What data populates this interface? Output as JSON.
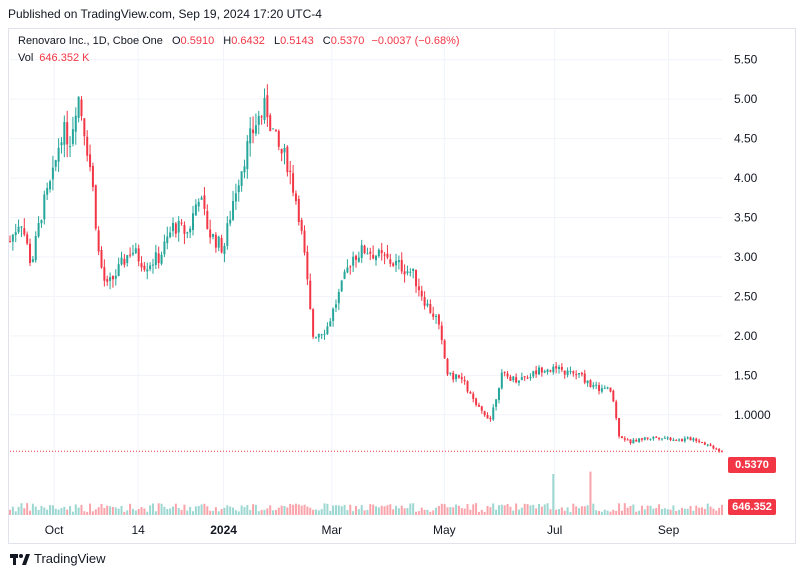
{
  "header": {
    "published": "Published on TradingView.com, Sep 19, 2024 17:20 UTC-4"
  },
  "legend": {
    "symbol": "Renovaro Inc., 1D, Cboe One",
    "o_label": "O",
    "o_value": "0.5910",
    "h_label": "H",
    "h_value": "0.6432",
    "l_label": "L",
    "l_value": "0.5143",
    "c_label": "C",
    "c_value": "0.5370",
    "change": "−0.0037 (−0.68%)",
    "vol_label": "Vol",
    "vol_value": "646.352 K"
  },
  "footer": {
    "brand": "TradingView",
    "logo_icon": "tradingview-logo-icon"
  },
  "colors": {
    "up": "#26a69a",
    "down": "#f23645",
    "grid": "#f0f3fa",
    "axis_text": "#131722"
  },
  "chart_data": {
    "type": "candlestick",
    "title": "Renovaro Inc., 1D, Cboe One",
    "y_ticks": [
      "5.50",
      "5.00",
      "4.50",
      "4.00",
      "3.50",
      "3.00",
      "2.50",
      "2.00",
      "1.50",
      "1.0000"
    ],
    "y_range": [
      0.3,
      5.75
    ],
    "x_ticks": [
      "Oct",
      "14",
      "2024",
      "Mar",
      "May",
      "Jul",
      "Sep"
    ],
    "last_price_label": "0.5370",
    "last_price": 0.537,
    "last_volume_label": "646.352 K",
    "grid": true,
    "price_path": [
      {
        "x": 0.0,
        "p": 3.2
      },
      {
        "x": 0.015,
        "p": 3.5
      },
      {
        "x": 0.03,
        "p": 2.9
      },
      {
        "x": 0.045,
        "p": 3.6
      },
      {
        "x": 0.06,
        "p": 4.0
      },
      {
        "x": 0.072,
        "p": 4.6
      },
      {
        "x": 0.085,
        "p": 4.5
      },
      {
        "x": 0.095,
        "p": 5.1
      },
      {
        "x": 0.105,
        "p": 4.6
      },
      {
        "x": 0.115,
        "p": 4.0
      },
      {
        "x": 0.125,
        "p": 3.0
      },
      {
        "x": 0.135,
        "p": 2.6
      },
      {
        "x": 0.15,
        "p": 2.8
      },
      {
        "x": 0.17,
        "p": 3.1
      },
      {
        "x": 0.19,
        "p": 2.9
      },
      {
        "x": 0.21,
        "p": 3.0
      },
      {
        "x": 0.23,
        "p": 3.4
      },
      {
        "x": 0.25,
        "p": 3.3
      },
      {
        "x": 0.265,
        "p": 3.8
      },
      {
        "x": 0.28,
        "p": 3.3
      },
      {
        "x": 0.3,
        "p": 3.1
      },
      {
        "x": 0.315,
        "p": 3.8
      },
      {
        "x": 0.33,
        "p": 4.3
      },
      {
        "x": 0.345,
        "p": 4.7
      },
      {
        "x": 0.36,
        "p": 4.9
      },
      {
        "x": 0.375,
        "p": 4.4
      },
      {
        "x": 0.39,
        "p": 4.2
      },
      {
        "x": 0.405,
        "p": 3.6
      },
      {
        "x": 0.415,
        "p": 2.9
      },
      {
        "x": 0.425,
        "p": 2.0
      },
      {
        "x": 0.445,
        "p": 2.1
      },
      {
        "x": 0.465,
        "p": 2.6
      },
      {
        "x": 0.48,
        "p": 3.0
      },
      {
        "x": 0.5,
        "p": 3.1
      },
      {
        "x": 0.52,
        "p": 3.0
      },
      {
        "x": 0.545,
        "p": 2.9
      },
      {
        "x": 0.565,
        "p": 2.8
      },
      {
        "x": 0.585,
        "p": 2.4
      },
      {
        "x": 0.6,
        "p": 2.2
      },
      {
        "x": 0.615,
        "p": 1.5
      },
      {
        "x": 0.635,
        "p": 1.45
      },
      {
        "x": 0.655,
        "p": 1.1
      },
      {
        "x": 0.675,
        "p": 0.95
      },
      {
        "x": 0.69,
        "p": 1.5
      },
      {
        "x": 0.71,
        "p": 1.45
      },
      {
        "x": 0.73,
        "p": 1.5
      },
      {
        "x": 0.75,
        "p": 1.6
      },
      {
        "x": 0.775,
        "p": 1.55
      },
      {
        "x": 0.8,
        "p": 1.5
      },
      {
        "x": 0.82,
        "p": 1.35
      },
      {
        "x": 0.845,
        "p": 1.3
      },
      {
        "x": 0.855,
        "p": 0.75
      },
      {
        "x": 0.87,
        "p": 0.65
      },
      {
        "x": 0.89,
        "p": 0.7
      },
      {
        "x": 0.915,
        "p": 0.72
      },
      {
        "x": 0.94,
        "p": 0.68
      },
      {
        "x": 0.96,
        "p": 0.7
      },
      {
        "x": 0.98,
        "p": 0.62
      },
      {
        "x": 1.0,
        "p": 0.537
      }
    ]
  }
}
